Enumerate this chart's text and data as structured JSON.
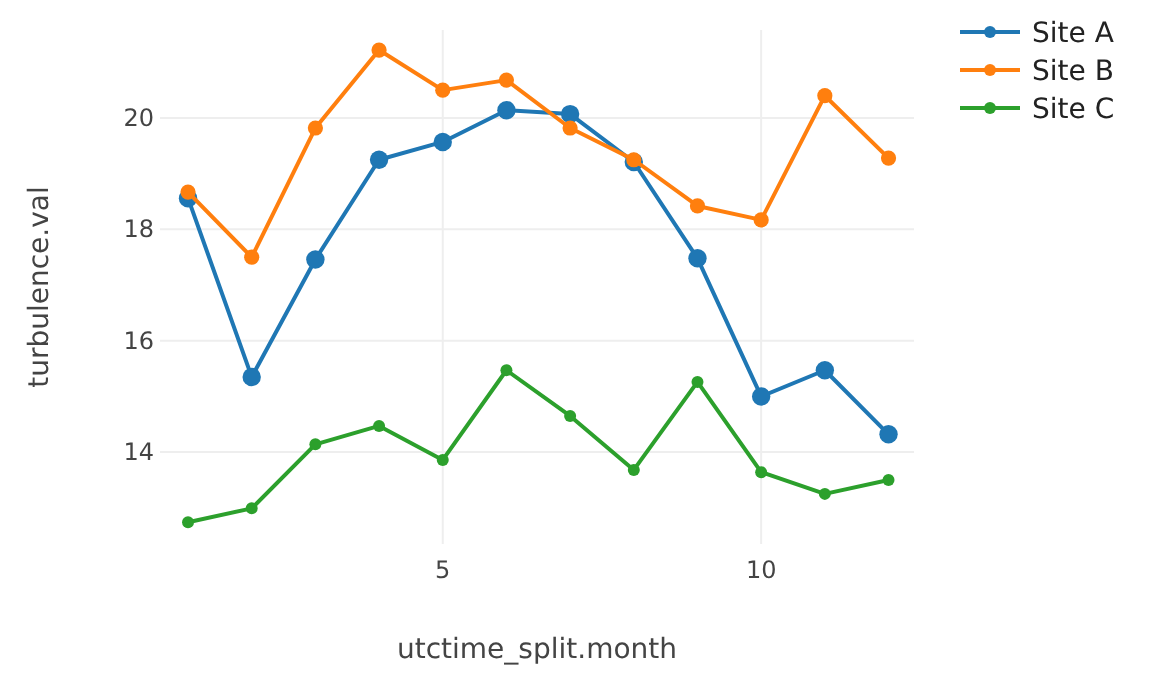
{
  "chart_data": {
    "type": "line",
    "xlabel": "utctime_split.month",
    "ylabel": "turbulence.val",
    "x": [
      1,
      2,
      3,
      4,
      5,
      6,
      7,
      8,
      9,
      10,
      11,
      12
    ],
    "series": [
      {
        "name": "Site A",
        "color": "#1f77b4",
        "values": [
          18.56,
          15.35,
          17.46,
          19.25,
          19.57,
          20.14,
          20.07,
          19.21,
          17.48,
          15.0,
          15.47,
          14.32
        ]
      },
      {
        "name": "Site B",
        "color": "#ff7f0e",
        "values": [
          18.67,
          17.5,
          19.82,
          21.22,
          20.5,
          20.68,
          19.82,
          19.25,
          18.42,
          18.17,
          20.4,
          19.28
        ]
      },
      {
        "name": "Site C",
        "color": "#2ca02c",
        "values": [
          12.74,
          12.99,
          14.14,
          14.47,
          13.86,
          15.47,
          14.65,
          13.68,
          15.26,
          13.64,
          13.25,
          13.5
        ]
      }
    ],
    "xlim": [
      0.56,
      12.4
    ],
    "xticks": [
      5,
      10
    ],
    "ylim": [
      12.35,
      21.58
    ],
    "yticks": [
      14,
      16,
      18,
      20
    ],
    "grid": true,
    "legend": "top right",
    "marker": "circle",
    "line_style": "solid"
  }
}
